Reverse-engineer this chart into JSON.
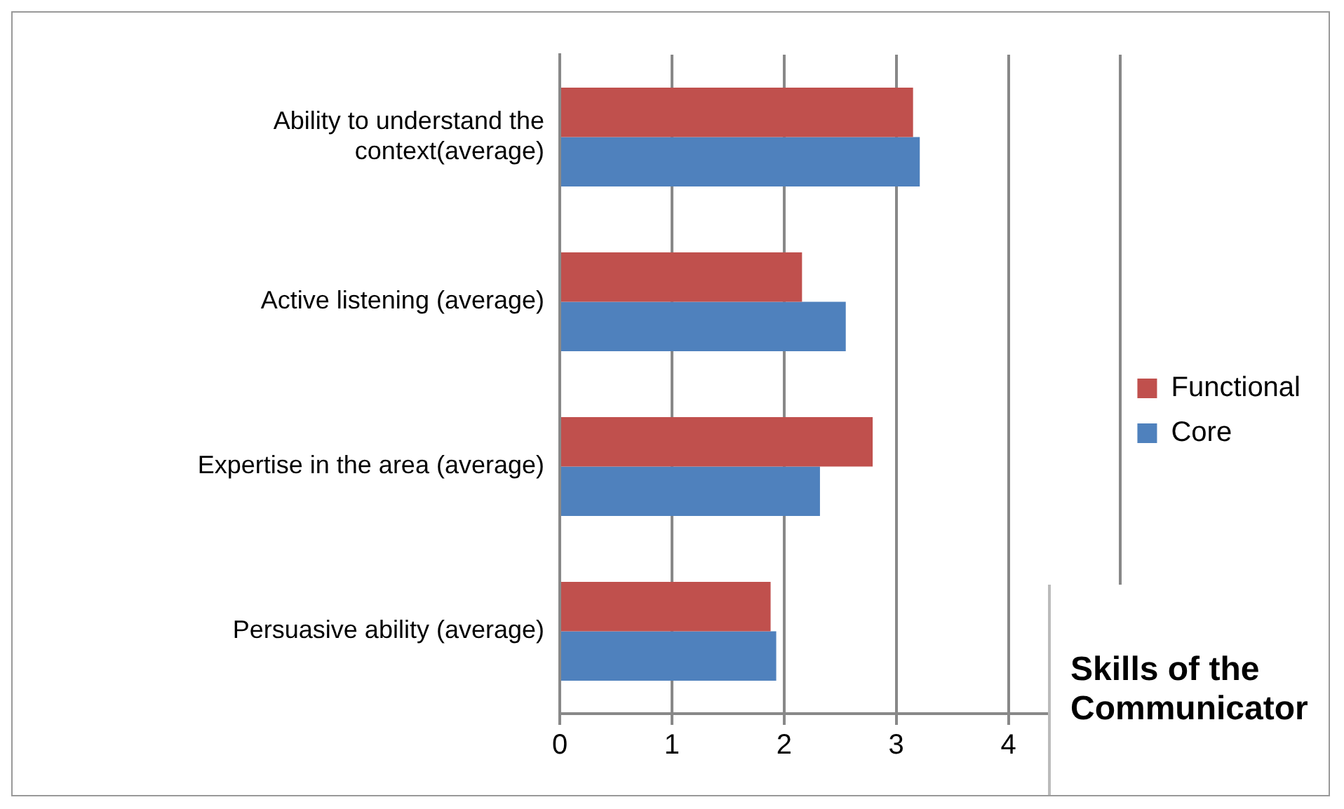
{
  "chart_data": {
    "type": "bar",
    "orientation": "horizontal",
    "title": "Skills of the Communicator",
    "categories": [
      "Ability to understand the context(average)",
      "Active listening (average)",
      "Expertise in the area (average)",
      "Persuasive ability (average)"
    ],
    "series": [
      {
        "name": "Functional",
        "color": "#c0504d",
        "values": [
          3.15,
          2.16,
          2.79,
          1.88
        ]
      },
      {
        "name": "Core",
        "color": "#4f81bd",
        "values": [
          3.21,
          2.55,
          2.32,
          1.93
        ]
      }
    ],
    "xlim": [
      0,
      5
    ],
    "xticks": [
      0,
      1,
      2,
      3,
      4,
      {
        "value": 5,
        "label": null
      }
    ],
    "grid": "x",
    "legend": "right"
  }
}
